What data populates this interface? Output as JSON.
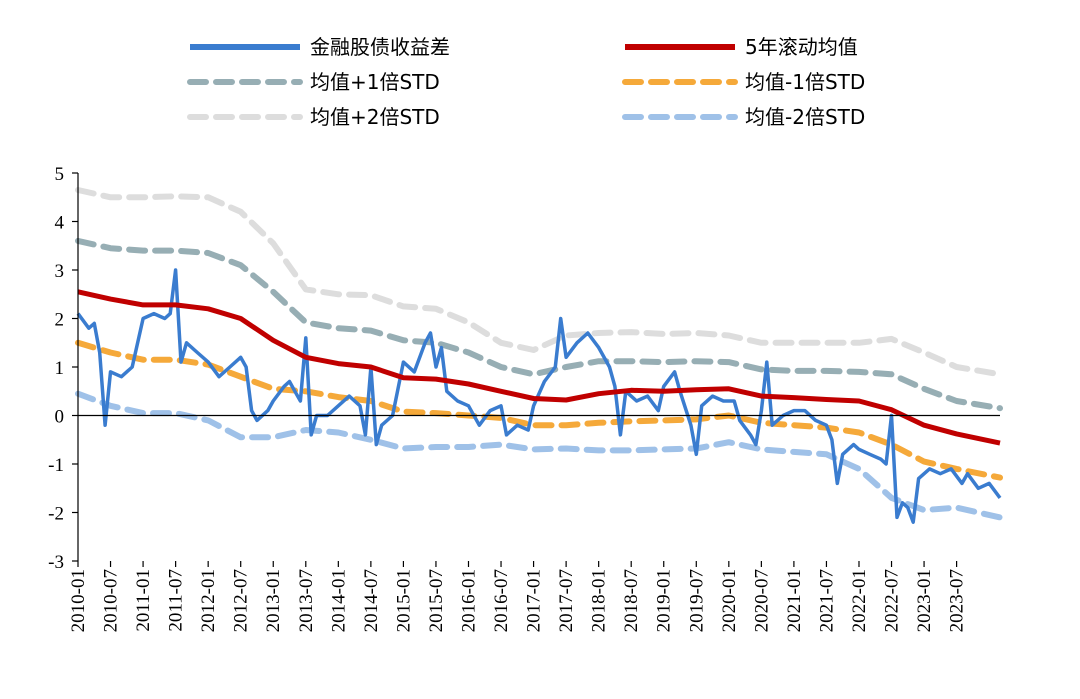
{
  "chart_data": {
    "type": "line",
    "title": "",
    "xlabel": "",
    "ylabel": "",
    "ylim": [
      -3,
      5
    ],
    "yticks": [
      -3,
      -2,
      -1,
      0,
      1,
      2,
      3,
      4,
      5
    ],
    "xlim": [
      "2010-01",
      "2024-03"
    ],
    "xticks": [
      "2010-01",
      "2010-07",
      "2011-01",
      "2011-07",
      "2012-01",
      "2012-07",
      "2013-01",
      "2013-07",
      "2014-01",
      "2014-07",
      "2015-01",
      "2015-07",
      "2016-01",
      "2016-07",
      "2017-01",
      "2017-07",
      "2018-01",
      "2018-07",
      "2019-01",
      "2019-07",
      "2020-01",
      "2020-07",
      "2021-01",
      "2021-07",
      "2022-01",
      "2022-07",
      "2023-01",
      "2023-07"
    ],
    "grid": false,
    "legend": "top",
    "series": [
      {
        "name": "金融股债收益差",
        "color": "#3a7ccf",
        "style": "solid",
        "points": [
          [
            "2010-01",
            2.1
          ],
          [
            "2010-03",
            1.8
          ],
          [
            "2010-04",
            1.9
          ],
          [
            "2010-05",
            1.3
          ],
          [
            "2010-06",
            -0.2
          ],
          [
            "2010-07",
            0.9
          ],
          [
            "2010-09",
            0.8
          ],
          [
            "2010-11",
            1.0
          ],
          [
            "2011-01",
            2.0
          ],
          [
            "2011-03",
            2.1
          ],
          [
            "2011-05",
            2.0
          ],
          [
            "2011-06",
            2.1
          ],
          [
            "2011-07",
            3.0
          ],
          [
            "2011-08",
            1.1
          ],
          [
            "2011-09",
            1.5
          ],
          [
            "2011-11",
            1.3
          ],
          [
            "2012-01",
            1.1
          ],
          [
            "2012-03",
            0.8
          ],
          [
            "2012-05",
            1.0
          ],
          [
            "2012-07",
            1.2
          ],
          [
            "2012-08",
            1.0
          ],
          [
            "2012-09",
            0.1
          ],
          [
            "2012-10",
            -0.1
          ],
          [
            "2012-12",
            0.1
          ],
          [
            "2013-01",
            0.3
          ],
          [
            "2013-03",
            0.6
          ],
          [
            "2013-04",
            0.7
          ],
          [
            "2013-05",
            0.5
          ],
          [
            "2013-06",
            0.3
          ],
          [
            "2013-07",
            1.6
          ],
          [
            "2013-08",
            -0.4
          ],
          [
            "2013-09",
            0.0
          ],
          [
            "2013-11",
            0.0
          ],
          [
            "2014-01",
            0.2
          ],
          [
            "2014-03",
            0.4
          ],
          [
            "2014-05",
            0.2
          ],
          [
            "2014-06",
            -0.4
          ],
          [
            "2014-07",
            1.0
          ],
          [
            "2014-08",
            -0.6
          ],
          [
            "2014-09",
            -0.2
          ],
          [
            "2014-11",
            0.0
          ],
          [
            "2015-01",
            1.1
          ],
          [
            "2015-03",
            0.9
          ],
          [
            "2015-05",
            1.5
          ],
          [
            "2015-06",
            1.7
          ],
          [
            "2015-07",
            1.0
          ],
          [
            "2015-08",
            1.4
          ],
          [
            "2015-09",
            0.5
          ],
          [
            "2015-11",
            0.3
          ],
          [
            "2016-01",
            0.2
          ],
          [
            "2016-03",
            -0.2
          ],
          [
            "2016-05",
            0.1
          ],
          [
            "2016-07",
            0.2
          ],
          [
            "2016-08",
            -0.4
          ],
          [
            "2016-10",
            -0.2
          ],
          [
            "2016-12",
            -0.3
          ],
          [
            "2017-01",
            0.2
          ],
          [
            "2017-03",
            0.7
          ],
          [
            "2017-05",
            1.0
          ],
          [
            "2017-06",
            2.0
          ],
          [
            "2017-07",
            1.2
          ],
          [
            "2017-09",
            1.5
          ],
          [
            "2017-11",
            1.7
          ],
          [
            "2018-01",
            1.4
          ],
          [
            "2018-03",
            1.0
          ],
          [
            "2018-04",
            0.6
          ],
          [
            "2018-05",
            -0.4
          ],
          [
            "2018-06",
            0.5
          ],
          [
            "2018-08",
            0.3
          ],
          [
            "2018-10",
            0.4
          ],
          [
            "2018-12",
            0.1
          ],
          [
            "2019-01",
            0.6
          ],
          [
            "2019-03",
            0.9
          ],
          [
            "2019-04",
            0.5
          ],
          [
            "2019-06",
            -0.2
          ],
          [
            "2019-07",
            -0.8
          ],
          [
            "2019-08",
            0.2
          ],
          [
            "2019-10",
            0.4
          ],
          [
            "2019-12",
            0.3
          ],
          [
            "2020-02",
            0.3
          ],
          [
            "2020-03",
            -0.1
          ],
          [
            "2020-05",
            -0.4
          ],
          [
            "2020-06",
            -0.6
          ],
          [
            "2020-07",
            0.1
          ],
          [
            "2020-08",
            1.1
          ],
          [
            "2020-09",
            -0.2
          ],
          [
            "2020-11",
            0.0
          ],
          [
            "2021-01",
            0.1
          ],
          [
            "2021-03",
            0.1
          ],
          [
            "2021-05",
            -0.1
          ],
          [
            "2021-07",
            -0.2
          ],
          [
            "2021-08",
            -0.5
          ],
          [
            "2021-09",
            -1.4
          ],
          [
            "2021-10",
            -0.8
          ],
          [
            "2021-12",
            -0.6
          ],
          [
            "2022-01",
            -0.7
          ],
          [
            "2022-03",
            -0.8
          ],
          [
            "2022-05",
            -0.9
          ],
          [
            "2022-06",
            -1.0
          ],
          [
            "2022-07",
            0.0
          ],
          [
            "2022-08",
            -2.1
          ],
          [
            "2022-09",
            -1.8
          ],
          [
            "2022-10",
            -1.9
          ],
          [
            "2022-11",
            -2.2
          ],
          [
            "2022-12",
            -1.3
          ],
          [
            "2023-02",
            -1.1
          ],
          [
            "2023-04",
            -1.2
          ],
          [
            "2023-06",
            -1.1
          ],
          [
            "2023-08",
            -1.4
          ],
          [
            "2023-09",
            -1.2
          ],
          [
            "2023-11",
            -1.5
          ],
          [
            "2024-01",
            -1.4
          ],
          [
            "2024-03",
            -1.7
          ]
        ]
      },
      {
        "name": "5年滚动均值",
        "color": "#c00000",
        "style": "solid",
        "points": [
          [
            "2010-01",
            2.55
          ],
          [
            "2010-07",
            2.4
          ],
          [
            "2011-01",
            2.28
          ],
          [
            "2011-07",
            2.28
          ],
          [
            "2012-01",
            2.2
          ],
          [
            "2012-07",
            2.0
          ],
          [
            "2013-01",
            1.55
          ],
          [
            "2013-07",
            1.2
          ],
          [
            "2014-01",
            1.07
          ],
          [
            "2014-07",
            1.0
          ],
          [
            "2015-01",
            0.78
          ],
          [
            "2015-07",
            0.75
          ],
          [
            "2016-01",
            0.65
          ],
          [
            "2016-07",
            0.5
          ],
          [
            "2017-01",
            0.35
          ],
          [
            "2017-07",
            0.32
          ],
          [
            "2018-01",
            0.45
          ],
          [
            "2018-07",
            0.52
          ],
          [
            "2019-01",
            0.5
          ],
          [
            "2019-07",
            0.53
          ],
          [
            "2020-01",
            0.55
          ],
          [
            "2020-07",
            0.4
          ],
          [
            "2021-01",
            0.37
          ],
          [
            "2021-07",
            0.33
          ],
          [
            "2022-01",
            0.3
          ],
          [
            "2022-07",
            0.12
          ],
          [
            "2023-01",
            -0.2
          ],
          [
            "2023-07",
            -0.38
          ],
          [
            "2024-03",
            -0.57
          ]
        ]
      },
      {
        "name": "均值+1倍STD",
        "color": "#97aeb4",
        "style": "dash",
        "points": [
          [
            "2010-01",
            3.6
          ],
          [
            "2010-07",
            3.45
          ],
          [
            "2011-01",
            3.4
          ],
          [
            "2011-07",
            3.4
          ],
          [
            "2012-01",
            3.35
          ],
          [
            "2012-07",
            3.1
          ],
          [
            "2013-01",
            2.55
          ],
          [
            "2013-07",
            1.92
          ],
          [
            "2014-01",
            1.8
          ],
          [
            "2014-07",
            1.75
          ],
          [
            "2015-01",
            1.55
          ],
          [
            "2015-07",
            1.5
          ],
          [
            "2016-01",
            1.3
          ],
          [
            "2016-07",
            1.0
          ],
          [
            "2017-01",
            0.85
          ],
          [
            "2017-07",
            1.0
          ],
          [
            "2018-01",
            1.12
          ],
          [
            "2018-07",
            1.12
          ],
          [
            "2019-01",
            1.1
          ],
          [
            "2019-07",
            1.12
          ],
          [
            "2020-01",
            1.1
          ],
          [
            "2020-07",
            0.95
          ],
          [
            "2021-01",
            0.92
          ],
          [
            "2021-07",
            0.92
          ],
          [
            "2022-01",
            0.9
          ],
          [
            "2022-07",
            0.85
          ],
          [
            "2023-01",
            0.55
          ],
          [
            "2023-07",
            0.3
          ],
          [
            "2024-03",
            0.15
          ]
        ]
      },
      {
        "name": "均值-1倍STD",
        "color": "#f5a93a",
        "style": "dash",
        "points": [
          [
            "2010-01",
            1.5
          ],
          [
            "2010-07",
            1.3
          ],
          [
            "2011-01",
            1.15
          ],
          [
            "2011-07",
            1.15
          ],
          [
            "2012-01",
            1.05
          ],
          [
            "2012-07",
            0.8
          ],
          [
            "2013-01",
            0.55
          ],
          [
            "2013-07",
            0.5
          ],
          [
            "2014-01",
            0.38
          ],
          [
            "2014-07",
            0.3
          ],
          [
            "2015-01",
            0.08
          ],
          [
            "2015-07",
            0.05
          ],
          [
            "2016-01",
            0.0
          ],
          [
            "2016-07",
            -0.05
          ],
          [
            "2017-01",
            -0.2
          ],
          [
            "2017-07",
            -0.2
          ],
          [
            "2018-01",
            -0.15
          ],
          [
            "2018-07",
            -0.12
          ],
          [
            "2019-01",
            -0.1
          ],
          [
            "2019-07",
            -0.08
          ],
          [
            "2020-01",
            0.0
          ],
          [
            "2020-07",
            -0.15
          ],
          [
            "2021-01",
            -0.2
          ],
          [
            "2021-07",
            -0.25
          ],
          [
            "2022-01",
            -0.35
          ],
          [
            "2022-07",
            -0.6
          ],
          [
            "2023-01",
            -0.95
          ],
          [
            "2023-07",
            -1.1
          ],
          [
            "2024-03",
            -1.28
          ]
        ]
      },
      {
        "name": "均值+2倍STD",
        "color": "#dddddd",
        "style": "dash",
        "points": [
          [
            "2010-01",
            4.65
          ],
          [
            "2010-07",
            4.5
          ],
          [
            "2011-01",
            4.5
          ],
          [
            "2011-07",
            4.52
          ],
          [
            "2012-01",
            4.5
          ],
          [
            "2012-07",
            4.2
          ],
          [
            "2013-01",
            3.55
          ],
          [
            "2013-07",
            2.6
          ],
          [
            "2014-01",
            2.5
          ],
          [
            "2014-07",
            2.48
          ],
          [
            "2015-01",
            2.25
          ],
          [
            "2015-07",
            2.2
          ],
          [
            "2016-01",
            1.92
          ],
          [
            "2016-07",
            1.5
          ],
          [
            "2017-01",
            1.35
          ],
          [
            "2017-07",
            1.65
          ],
          [
            "2018-01",
            1.7
          ],
          [
            "2018-07",
            1.72
          ],
          [
            "2019-01",
            1.68
          ],
          [
            "2019-07",
            1.7
          ],
          [
            "2020-01",
            1.65
          ],
          [
            "2020-07",
            1.5
          ],
          [
            "2021-01",
            1.5
          ],
          [
            "2021-07",
            1.5
          ],
          [
            "2022-01",
            1.5
          ],
          [
            "2022-07",
            1.58
          ],
          [
            "2023-01",
            1.3
          ],
          [
            "2023-07",
            1.0
          ],
          [
            "2024-03",
            0.85
          ]
        ]
      },
      {
        "name": "均值-2倍STD",
        "color": "#9fc1e8",
        "style": "dash",
        "points": [
          [
            "2010-01",
            0.45
          ],
          [
            "2010-07",
            0.2
          ],
          [
            "2011-01",
            0.05
          ],
          [
            "2011-07",
            0.05
          ],
          [
            "2012-01",
            -0.1
          ],
          [
            "2012-07",
            -0.45
          ],
          [
            "2013-01",
            -0.45
          ],
          [
            "2013-07",
            -0.3
          ],
          [
            "2014-01",
            -0.35
          ],
          [
            "2014-07",
            -0.5
          ],
          [
            "2015-01",
            -0.68
          ],
          [
            "2015-07",
            -0.65
          ],
          [
            "2016-01",
            -0.65
          ],
          [
            "2016-07",
            -0.6
          ],
          [
            "2017-01",
            -0.7
          ],
          [
            "2017-07",
            -0.68
          ],
          [
            "2018-01",
            -0.72
          ],
          [
            "2018-07",
            -0.72
          ],
          [
            "2019-01",
            -0.7
          ],
          [
            "2019-07",
            -0.68
          ],
          [
            "2020-01",
            -0.55
          ],
          [
            "2020-07",
            -0.7
          ],
          [
            "2021-01",
            -0.75
          ],
          [
            "2021-07",
            -0.8
          ],
          [
            "2022-01",
            -1.1
          ],
          [
            "2022-07",
            -1.7
          ],
          [
            "2023-01",
            -1.95
          ],
          [
            "2023-07",
            -1.9
          ],
          [
            "2024-03",
            -2.1
          ]
        ]
      }
    ]
  }
}
